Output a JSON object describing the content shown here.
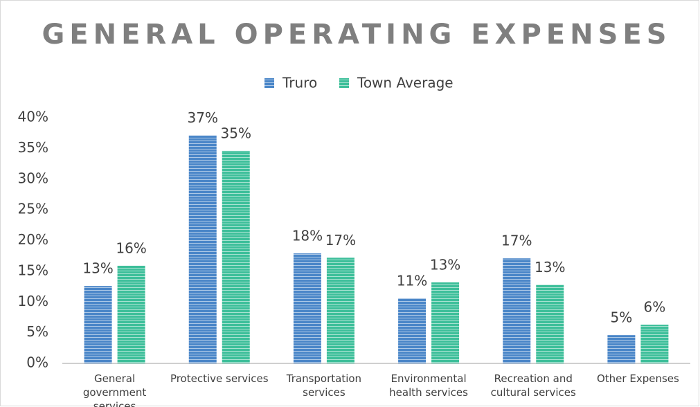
{
  "chart_data": {
    "type": "bar",
    "title": "GENERAL OPERATING EXPENSES",
    "categories": [
      "General\ngovernment services",
      "Protective services",
      "Transportation\nservices",
      "Environmental\nhealth services",
      "Recreation and\ncultural services",
      "Other Expenses"
    ],
    "series": [
      {
        "name": "Truro",
        "color": "#4a86c8",
        "values": [
          12.6,
          37.1,
          17.9,
          10.6,
          17.1,
          4.6
        ],
        "value_labels": [
          "13%",
          "37%",
          "18%",
          "11%",
          "17%",
          "5%"
        ]
      },
      {
        "name": "Town Average",
        "color": "#3dbf9a",
        "values": [
          15.9,
          34.6,
          17.2,
          13.2,
          12.8,
          6.3
        ],
        "value_labels": [
          "16%",
          "35%",
          "17%",
          "13%",
          "13%",
          "6%"
        ]
      }
    ],
    "ylim": [
      0,
      40
    ],
    "yticks": [
      {
        "value": 0,
        "label": "0%"
      },
      {
        "value": 5,
        "label": "5%"
      },
      {
        "value": 10,
        "label": "10%"
      },
      {
        "value": 15,
        "label": "15%"
      },
      {
        "value": 20,
        "label": "20%"
      },
      {
        "value": 25,
        "label": "25%"
      },
      {
        "value": 30,
        "label": "30%"
      },
      {
        "value": 35,
        "label": "35%"
      },
      {
        "value": 40,
        "label": "40%"
      }
    ],
    "grid": false,
    "legend": "top"
  }
}
